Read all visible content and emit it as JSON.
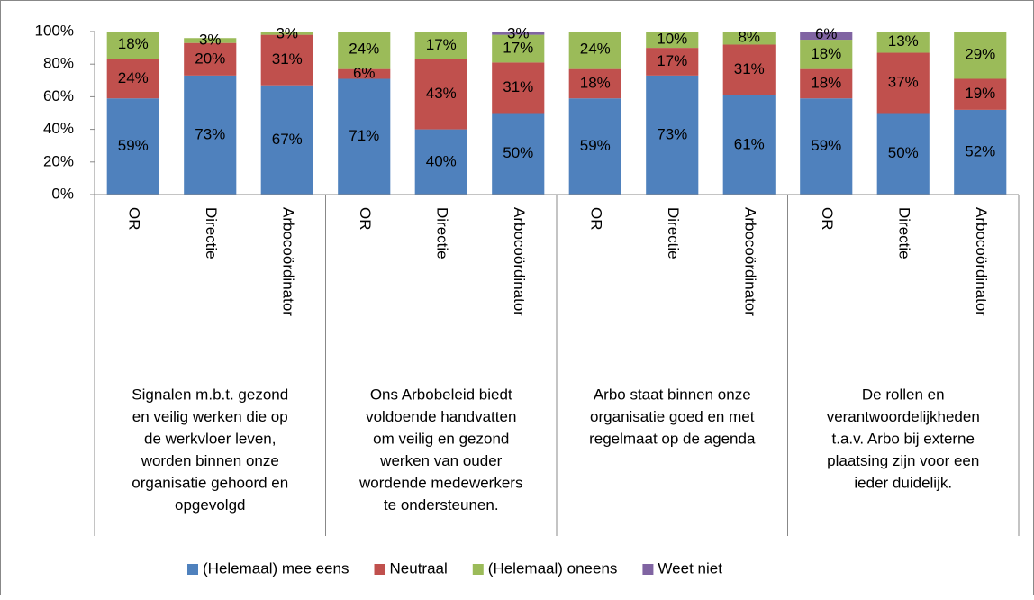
{
  "chart_data": {
    "type": "stacked_bar",
    "categories": [
      "OR",
      "Directie",
      "Arbocoördinator",
      "OR",
      "Directie",
      "Arbocoördinator",
      "OR",
      "Directie",
      "Arbocoördinator",
      "OR",
      "Directie",
      "Arbocoördinator"
    ],
    "groups": [
      {
        "lines": [
          "Signalen m.b.t. gezond",
          "en veilig werken die op",
          "de werkvloer leven,",
          "worden binnen onze",
          "organisatie gehoord en",
          "opgevolgd"
        ]
      },
      {
        "lines": [
          "Ons Arbobeleid biedt",
          "voldoende handvatten",
          "om veilig en gezond",
          "werken van ouder",
          "wordende medewerkers",
          "te ondersteunen."
        ]
      },
      {
        "lines": [
          "Arbo staat binnen onze",
          "organisatie goed en met",
          "regelmaat op de agenda"
        ]
      },
      {
        "lines": [
          "De rollen en",
          "verantwoordelijkheden",
          "t.a.v. Arbo bij externe",
          "plaatsing zijn voor een",
          "ieder duidelijk."
        ]
      }
    ],
    "series": [
      {
        "name": "(Helemaal) mee eens",
        "color": "#4f81bd",
        "values": [
          59,
          73,
          67,
          71,
          40,
          50,
          59,
          73,
          61,
          59,
          50,
          52
        ],
        "value_labels": [
          "59%",
          "73%",
          "67%",
          "71%",
          "40%",
          "50%",
          "59%",
          "73%",
          "61%",
          "59%",
          "50%",
          "52%"
        ]
      },
      {
        "name": "Neutraal",
        "color": "#c0504d",
        "values": [
          24,
          20,
          31,
          6,
          43,
          31,
          18,
          17,
          31,
          18,
          37,
          19
        ],
        "value_labels": [
          "24%",
          "20%",
          "31%",
          "6%",
          "43%",
          "31%",
          "18%",
          "17%",
          "31%",
          "18%",
          "37%",
          "19%"
        ]
      },
      {
        "name": "(Helemaal) oneens",
        "color": "#9bbb59",
        "values": [
          18,
          3,
          3,
          24,
          17,
          17,
          24,
          10,
          8,
          18,
          13,
          29
        ],
        "value_labels": [
          "18%",
          "3%",
          "3%",
          "24%",
          "17%",
          "17%",
          "24%",
          "10%",
          "8%",
          "18%",
          "13%",
          "29%"
        ]
      },
      {
        "name": "Weet niet",
        "color": "#8064a2",
        "values": [
          null,
          null,
          null,
          null,
          null,
          3,
          null,
          null,
          null,
          6,
          null,
          null
        ],
        "value_labels": [
          null,
          null,
          null,
          null,
          null,
          "3%",
          null,
          null,
          null,
          "6%",
          null,
          null
        ]
      }
    ],
    "ylim": [
      0,
      100
    ],
    "yticks": [
      {
        "value": 0,
        "label": "0%"
      },
      {
        "value": 20,
        "label": "20%"
      },
      {
        "value": 40,
        "label": "40%"
      },
      {
        "value": 60,
        "label": "60%"
      },
      {
        "value": 80,
        "label": "80%"
      },
      {
        "value": 100,
        "label": "100%"
      }
    ],
    "legend": "bottom"
  }
}
